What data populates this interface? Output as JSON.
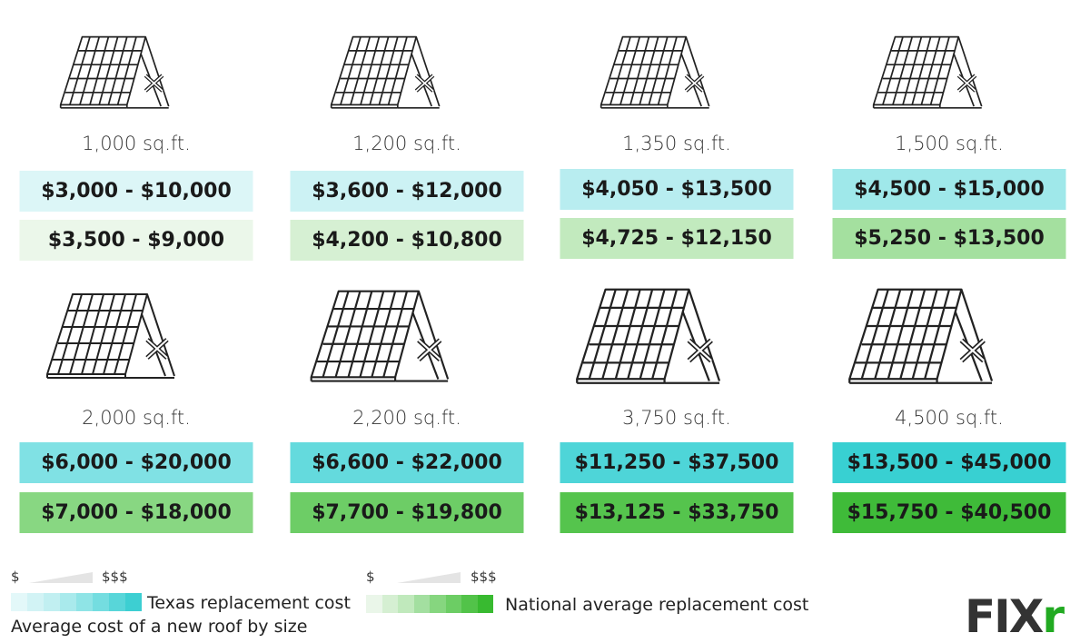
{
  "title": "Average cost of a new roof by size",
  "legend": {
    "low": "$",
    "high": "$$$",
    "texas_label": "Texas replacement cost",
    "national_label": "National average replacement cost",
    "texas_scale": [
      "#e3f8f9",
      "#d2f3f5",
      "#c1eff1",
      "#a9eaec",
      "#8fe4e6",
      "#74dde0",
      "#58d6d9",
      "#3dcfd2"
    ],
    "national_scale": [
      "#eaf6e9",
      "#d5efd2",
      "#c0e9bc",
      "#a3dfa0",
      "#86d67f",
      "#6ccd64",
      "#52c349",
      "#38ba30"
    ]
  },
  "logo": {
    "text_main": "FIX",
    "text_accent": "r"
  },
  "items": [
    {
      "size": "1,000 sq.ft.",
      "texas": "$3,000 - $10,000",
      "national": "$3,500 - $9,000",
      "texas_color": "#dcf6f7",
      "national_color": "#ebf7ea"
    },
    {
      "size": "1,200 sq.ft.",
      "texas": "$3,600 - $12,000",
      "national": "$4,200 - $10,800",
      "texas_color": "#ccf2f4",
      "national_color": "#d6f0d3"
    },
    {
      "size": "1,350 sq.ft.",
      "texas": "$4,050 - $13,500",
      "national": "$4,725 - $12,150",
      "texas_color": "#b8edf0",
      "national_color": "#c2eabe"
    },
    {
      "size": "1,500 sq.ft.",
      "texas": "$4,500 - $15,000",
      "national": "$5,250 - $13,500",
      "texas_color": "#9fe8ea",
      "national_color": "#a4e09f"
    },
    {
      "size": "2,000 sq.ft.",
      "texas": "$6,000 - $20,000",
      "national": "$7,000 - $18,000",
      "texas_color": "#80e1e4",
      "national_color": "#88d782"
    },
    {
      "size": "2,200 sq.ft.",
      "texas": "$6,600 - $22,000",
      "national": "$7,700 - $19,800",
      "texas_color": "#64dadd",
      "national_color": "#6dcd66"
    },
    {
      "size": "3,750 sq.ft.",
      "texas": "$11,250 - $37,500",
      "national": "$13,125 - $33,750",
      "texas_color": "#4ed5d8",
      "national_color": "#55c44d"
    },
    {
      "size": "4,500 sq.ft.",
      "texas": "$13,500 - $45,000",
      "national": "$15,750 - $40,500",
      "texas_color": "#38d0d2",
      "national_color": "#3fbb39"
    }
  ]
}
